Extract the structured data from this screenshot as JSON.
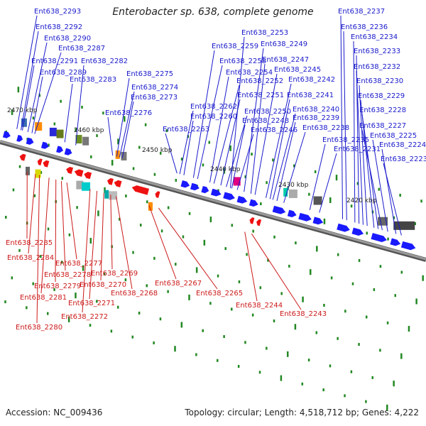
{
  "title": "Enterobacter sp. 638, complete genome",
  "footer": {
    "accession": "Accession: NC_009436",
    "summary": "Topology: circular; Length: 4,518,712 bp; Genes: 4,222"
  },
  "colors": {
    "forward_label": "#1a1acc",
    "reverse_label": "#cc1a1a",
    "forward_gene": "#1a1aff",
    "reverse_gene": "#ee1111",
    "backbone": "#888888",
    "tick": "#228822"
  },
  "scale_labels": [
    "2470 kbp",
    "2460 kbp",
    "2450 kbp",
    "2440 kbp",
    "2430 kbp",
    "2420 kbp"
  ],
  "forward_labels": [
    "Ent638_2293",
    "Ent638_2292",
    "Ent638_2290",
    "Ent638_2287",
    "Ent638_2291",
    "Ent638_2282",
    "Ent638_2289",
    "Ent638_2283",
    "Ent638_2275",
    "Ent638_2274",
    "Ent638_2273",
    "Ent638_2276",
    "Ent638_2253",
    "Ent638_2259",
    "Ent638_2249",
    "Ent638_2258",
    "Ent638_2247",
    "Ent638_2254",
    "Ent638_2245",
    "Ent638_2252",
    "Ent638_2242",
    "Ent638_2251",
    "Ent638_2241",
    "Ent638_2262",
    "Ent638_2260",
    "Ent638_2250",
    "Ent638_2240",
    "Ent638_2248",
    "Ent638_2239",
    "Ent638_2263",
    "Ent638_2246",
    "Ent638_2238",
    "Ent638_2237",
    "Ent638_2236",
    "Ent638_2234",
    "Ent638_2233",
    "Ent638_2232",
    "Ent638_2230",
    "Ent638_2229",
    "Ent638_2228",
    "Ent638_2227",
    "Ent638_2225",
    "Ent638_2235",
    "Ent638_2224",
    "Ent638_2231",
    "Ent638_2223"
  ],
  "reverse_labels": [
    "Ent638_2285",
    "Ent638_2284",
    "Ent638_2277",
    "Ent638_2278",
    "Ent638_2269",
    "Ent638_2279",
    "Ent638_2270",
    "Ent638_2281",
    "Ent638_2268",
    "Ent638_2267",
    "Ent638_2271",
    "Ent638_2265",
    "Ent638_2272",
    "Ent638_2280",
    "Ent638_2244",
    "Ent638_2243"
  ]
}
